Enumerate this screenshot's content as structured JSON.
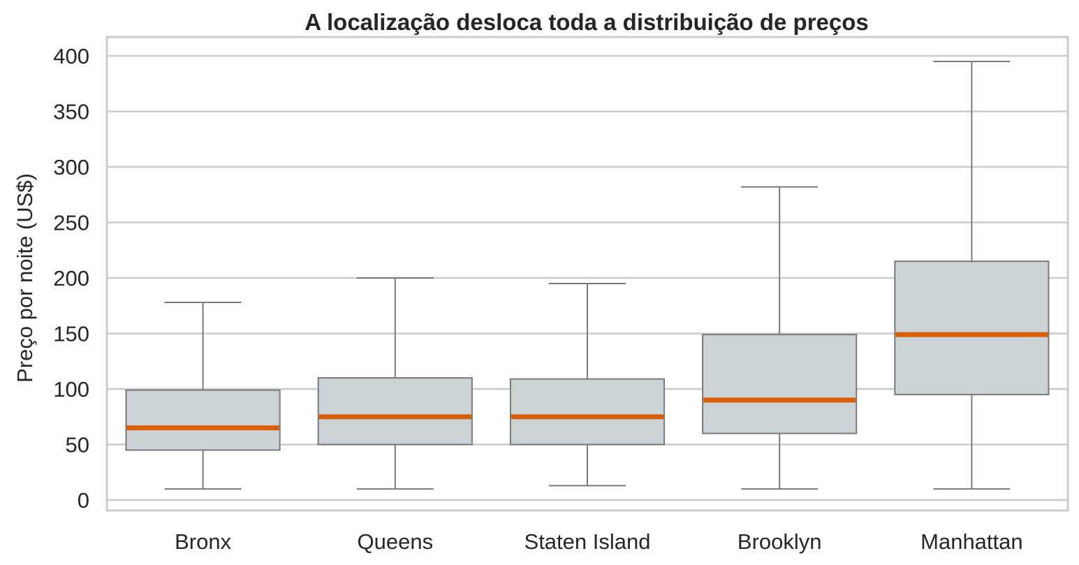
{
  "chart_data": {
    "type": "box",
    "title": "A localização desloca toda a distribuição de preços",
    "xlabel": "",
    "ylabel": "Preço por noite (US$)",
    "ylim": [
      -9,
      415
    ],
    "yticks": [
      0,
      50,
      100,
      150,
      200,
      250,
      300,
      350,
      400
    ],
    "grid": "horizontal",
    "categories": [
      "Bronx",
      "Queens",
      "Staten Island",
      "Brooklyn",
      "Manhattan"
    ],
    "boxes": [
      {
        "category": "Bronx",
        "whisker_low": 10,
        "q1": 45,
        "median": 65,
        "q3": 99,
        "whisker_high": 178
      },
      {
        "category": "Queens",
        "whisker_low": 10,
        "q1": 50,
        "median": 75,
        "q3": 110,
        "whisker_high": 200
      },
      {
        "category": "Staten Island",
        "whisker_low": 13,
        "q1": 50,
        "median": 75,
        "q3": 109,
        "whisker_high": 195
      },
      {
        "category": "Brooklyn",
        "whisker_low": 10,
        "q1": 60,
        "median": 90,
        "q3": 149,
        "whisker_high": 282
      },
      {
        "category": "Manhattan",
        "whisker_low": 10,
        "q1": 95,
        "median": 149,
        "q3": 215,
        "whisker_high": 395
      }
    ],
    "colors": {
      "box_fill": "#ccd3d7",
      "box_edge": "#7a7a7a",
      "median": "#d95f02",
      "grid": "#cbcbcb",
      "frame": "#cbcbcb",
      "text": "#262626"
    }
  }
}
